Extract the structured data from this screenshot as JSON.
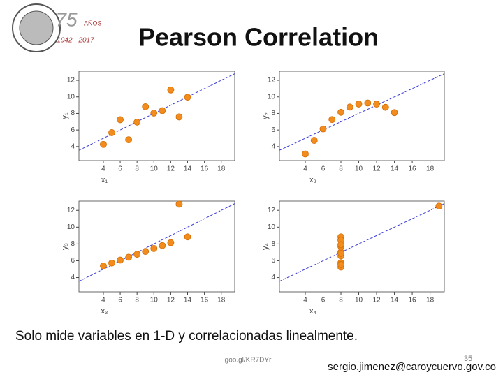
{
  "slide": {
    "title": "Pearson Correlation",
    "caption": "Solo mide variables en 1-D y correlacionadas linealmente.",
    "link": "goo.gl/KR7DYr",
    "page": "35",
    "email": "sergio.jimenez@caroycuervo.gov.co",
    "logo_number": "75",
    "logo_word": "AÑOS",
    "logo_years": "1942 - 2017"
  },
  "chart_data": [
    {
      "type": "scatter",
      "x_label": "x₁",
      "y_label": "y₁",
      "color": "#f28c1c",
      "x": [
        10,
        8,
        13,
        9,
        11,
        14,
        6,
        4,
        12,
        7,
        5
      ],
      "values": [
        8.04,
        6.95,
        7.58,
        8.81,
        8.33,
        9.96,
        7.24,
        4.26,
        10.84,
        4.82,
        5.68
      ],
      "trend_line": {
        "intercept": 3,
        "slope": 0.5,
        "color": "#3b3bd6"
      },
      "xlim": [
        1.1,
        19.6
      ],
      "ylim": [
        2.3,
        13.1
      ],
      "xticks": [
        4,
        6,
        8,
        10,
        12,
        14,
        16,
        18
      ],
      "yticks": [
        4,
        6,
        8,
        10,
        12
      ]
    },
    {
      "type": "scatter",
      "x_label": "x₂",
      "y_label": "y₂",
      "color": "#f28c1c",
      "x": [
        10,
        8,
        13,
        9,
        11,
        14,
        6,
        4,
        12,
        7,
        5
      ],
      "values": [
        9.14,
        8.14,
        8.74,
        8.77,
        9.26,
        8.1,
        6.13,
        3.1,
        9.13,
        7.26,
        4.74
      ],
      "trend_line": {
        "intercept": 3,
        "slope": 0.5,
        "color": "#3b3bd6"
      },
      "xlim": [
        1.1,
        19.6
      ],
      "ylim": [
        2.3,
        13.1
      ],
      "xticks": [
        4,
        6,
        8,
        10,
        12,
        14,
        16,
        18
      ],
      "yticks": [
        4,
        6,
        8,
        10,
        12
      ]
    },
    {
      "type": "scatter",
      "x_label": "x₃",
      "y_label": "y₃",
      "color": "#f28c1c",
      "x": [
        10,
        8,
        13,
        9,
        11,
        14,
        6,
        4,
        12,
        7,
        5
      ],
      "values": [
        7.46,
        6.77,
        12.74,
        7.11,
        7.81,
        8.84,
        6.08,
        5.39,
        8.15,
        6.42,
        5.73
      ],
      "trend_line": {
        "intercept": 3,
        "slope": 0.5,
        "color": "#3b3bd6"
      },
      "xlim": [
        1.1,
        19.6
      ],
      "ylim": [
        2.3,
        13.1
      ],
      "xticks": [
        4,
        6,
        8,
        10,
        12,
        14,
        16,
        18
      ],
      "yticks": [
        4,
        6,
        8,
        10,
        12
      ]
    },
    {
      "type": "scatter",
      "x_label": "x₄",
      "y_label": "y₄",
      "color": "#f28c1c",
      "x": [
        8,
        8,
        8,
        8,
        8,
        8,
        8,
        19,
        8,
        8,
        8
      ],
      "values": [
        6.58,
        5.76,
        7.71,
        8.84,
        8.47,
        7.04,
        5.25,
        12.5,
        5.56,
        7.91,
        6.89
      ],
      "trend_line": {
        "intercept": 3,
        "slope": 0.5,
        "color": "#3b3bd6"
      },
      "xlim": [
        1.1,
        19.6
      ],
      "ylim": [
        2.3,
        13.1
      ],
      "xticks": [
        4,
        6,
        8,
        10,
        12,
        14,
        16,
        18
      ],
      "yticks": [
        4,
        6,
        8,
        10,
        12
      ]
    }
  ]
}
